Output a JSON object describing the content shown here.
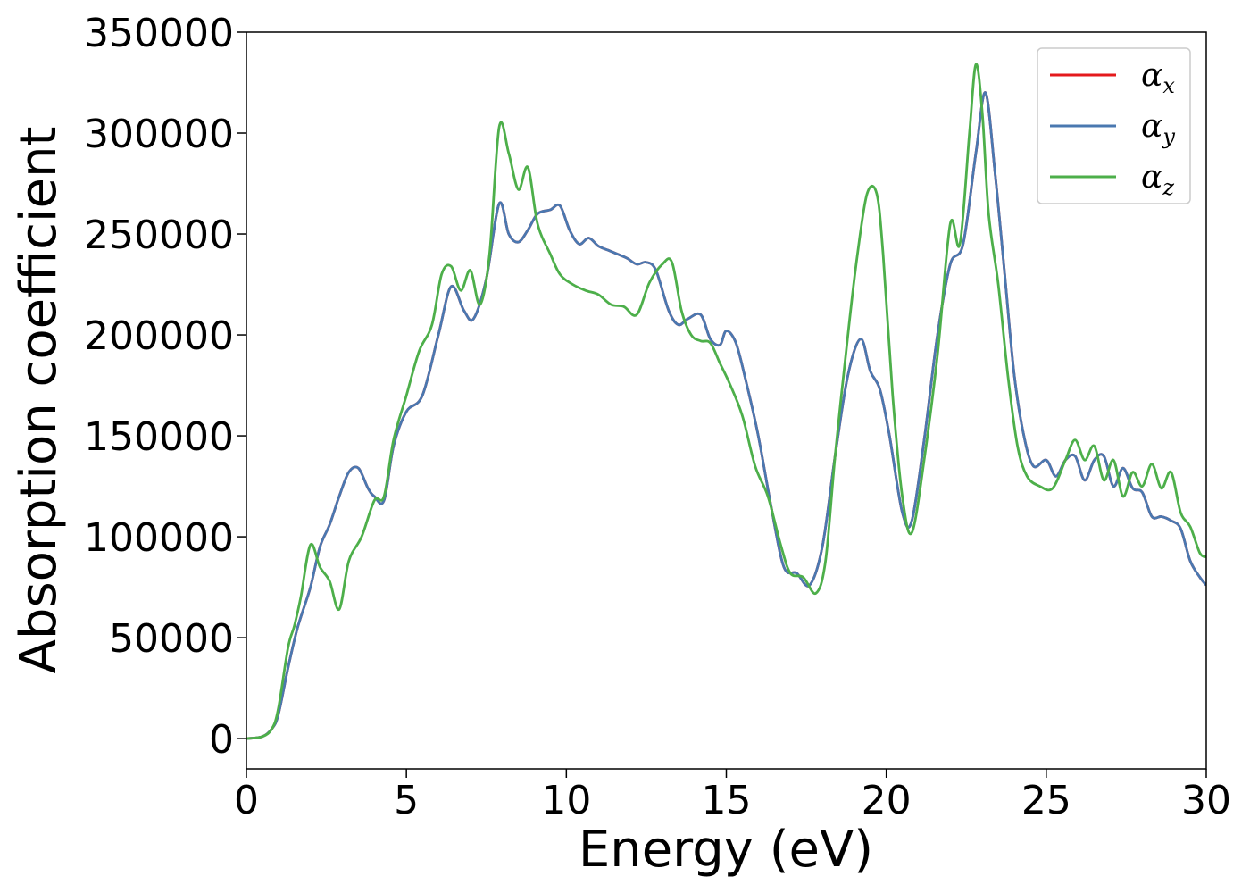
{
  "chart_data": {
    "type": "line",
    "title": "",
    "xlabel": "Energy (eV)",
    "ylabel": "Absorption coefficient",
    "xlim": [
      0,
      30
    ],
    "ylim": [
      -15000,
      350000
    ],
    "xticks": [
      "0",
      "5",
      "10",
      "15",
      "20",
      "25",
      "30"
    ],
    "yticks": [
      "0",
      "50000",
      "100000",
      "150000",
      "200000",
      "250000",
      "300000",
      "350000"
    ],
    "grid": false,
    "legend_position": "top-right",
    "legend": [
      {
        "symbol": "α",
        "sub": "x",
        "color": "#e41a1c"
      },
      {
        "symbol": "α",
        "sub": "y",
        "color": "#4a78b0"
      },
      {
        "symbol": "α",
        "sub": "z",
        "color": "#4daf4a"
      }
    ],
    "series": [
      {
        "color": "#e41a1c",
        "x": [
          0,
          0.5,
          0.8,
          1.0,
          1.3,
          1.6,
          2.0,
          2.3,
          2.6,
          2.9,
          3.2,
          3.5,
          3.8,
          4.0,
          4.3,
          4.6,
          5.0,
          5.5,
          6.0,
          6.4,
          6.8,
          7.1,
          7.5,
          7.9,
          8.2,
          8.5,
          8.8,
          9.1,
          9.5,
          9.8,
          10.1,
          10.4,
          10.7,
          11.0,
          11.3,
          11.6,
          11.9,
          12.2,
          12.5,
          12.8,
          13.2,
          13.5,
          13.8,
          14.2,
          14.5,
          14.8,
          15.0,
          15.3,
          15.6,
          16.0,
          16.4,
          16.8,
          17.2,
          17.6,
          18.0,
          18.4,
          18.8,
          19.2,
          19.5,
          19.8,
          20.1,
          20.5,
          20.8,
          21.2,
          21.6,
          22.0,
          22.4,
          22.8,
          23.1,
          23.4,
          23.7,
          24.0,
          24.3,
          24.6,
          25.0,
          25.3,
          25.6,
          25.9,
          26.2,
          26.5,
          26.8,
          27.1,
          27.4,
          27.7,
          28.0,
          28.3,
          28.6,
          28.9,
          29.2,
          29.5,
          29.8,
          30.0
        ],
        "y": [
          0,
          1000,
          5000,
          12000,
          35000,
          55000,
          75000,
          95000,
          106000,
          120000,
          132000,
          134000,
          124000,
          120000,
          118000,
          145000,
          162000,
          170000,
          200000,
          224000,
          212000,
          208000,
          228000,
          265000,
          250000,
          246000,
          252000,
          260000,
          262000,
          264000,
          252000,
          245000,
          248000,
          244000,
          242000,
          240000,
          238000,
          235000,
          236000,
          232000,
          212000,
          205000,
          208000,
          210000,
          198000,
          195000,
          202000,
          196000,
          178000,
          150000,
          115000,
          85000,
          82000,
          76000,
          95000,
          140000,
          180000,
          198000,
          182000,
          173000,
          150000,
          112000,
          108000,
          150000,
          200000,
          235000,
          245000,
          290000,
          320000,
          280000,
          230000,
          180000,
          150000,
          135000,
          138000,
          130000,
          138000,
          140000,
          128000,
          138000,
          140000,
          125000,
          134000,
          124000,
          122000,
          110000,
          110000,
          108000,
          104000,
          88000,
          80000,
          76000
        ]
      },
      {
        "color": "#4a78b0",
        "x": [
          0,
          0.5,
          0.8,
          1.0,
          1.3,
          1.6,
          2.0,
          2.3,
          2.6,
          2.9,
          3.2,
          3.5,
          3.8,
          4.0,
          4.3,
          4.6,
          5.0,
          5.5,
          6.0,
          6.4,
          6.8,
          7.1,
          7.5,
          7.9,
          8.2,
          8.5,
          8.8,
          9.1,
          9.5,
          9.8,
          10.1,
          10.4,
          10.7,
          11.0,
          11.3,
          11.6,
          11.9,
          12.2,
          12.5,
          12.8,
          13.2,
          13.5,
          13.8,
          14.2,
          14.5,
          14.8,
          15.0,
          15.3,
          15.6,
          16.0,
          16.4,
          16.8,
          17.2,
          17.6,
          18.0,
          18.4,
          18.8,
          19.2,
          19.5,
          19.8,
          20.1,
          20.5,
          20.8,
          21.2,
          21.6,
          22.0,
          22.4,
          22.8,
          23.1,
          23.4,
          23.7,
          24.0,
          24.3,
          24.6,
          25.0,
          25.3,
          25.6,
          25.9,
          26.2,
          26.5,
          26.8,
          27.1,
          27.4,
          27.7,
          28.0,
          28.3,
          28.6,
          28.9,
          29.2,
          29.5,
          29.8,
          30.0
        ],
        "y": [
          0,
          1000,
          5000,
          12000,
          35000,
          55000,
          75000,
          95000,
          106000,
          120000,
          132000,
          134000,
          124000,
          120000,
          118000,
          145000,
          162000,
          170000,
          200000,
          224000,
          212000,
          208000,
          228000,
          265000,
          250000,
          246000,
          252000,
          260000,
          262000,
          264000,
          252000,
          245000,
          248000,
          244000,
          242000,
          240000,
          238000,
          235000,
          236000,
          232000,
          212000,
          205000,
          208000,
          210000,
          198000,
          195000,
          202000,
          196000,
          178000,
          150000,
          115000,
          85000,
          82000,
          76000,
          95000,
          140000,
          180000,
          198000,
          182000,
          173000,
          150000,
          112000,
          108000,
          150000,
          200000,
          235000,
          245000,
          290000,
          320000,
          280000,
          230000,
          180000,
          150000,
          135000,
          138000,
          130000,
          138000,
          140000,
          128000,
          138000,
          140000,
          125000,
          134000,
          124000,
          122000,
          110000,
          110000,
          108000,
          104000,
          88000,
          80000,
          76000
        ]
      },
      {
        "color": "#4daf4a",
        "x": [
          0,
          0.5,
          0.8,
          1.0,
          1.3,
          1.5,
          1.7,
          2.0,
          2.3,
          2.6,
          2.9,
          3.2,
          3.6,
          4.0,
          4.3,
          4.6,
          5.0,
          5.4,
          5.8,
          6.1,
          6.4,
          6.7,
          7.0,
          7.3,
          7.6,
          7.9,
          8.2,
          8.5,
          8.8,
          9.1,
          9.5,
          9.8,
          10.2,
          10.6,
          11.0,
          11.4,
          11.8,
          12.2,
          12.6,
          13.0,
          13.3,
          13.6,
          13.9,
          14.2,
          14.5,
          14.8,
          15.1,
          15.5,
          15.9,
          16.3,
          16.7,
          17.0,
          17.4,
          17.8,
          18.1,
          18.4,
          18.8,
          19.1,
          19.4,
          19.7,
          19.9,
          20.2,
          20.5,
          20.8,
          21.2,
          21.6,
          22.0,
          22.3,
          22.6,
          22.8,
          23.0,
          23.2,
          23.5,
          23.8,
          24.1,
          24.4,
          24.8,
          25.2,
          25.6,
          25.9,
          26.2,
          26.5,
          26.8,
          27.1,
          27.4,
          27.7,
          28.0,
          28.3,
          28.6,
          28.9,
          29.2,
          29.5,
          29.8,
          30.0
        ],
        "y": [
          0,
          1000,
          5000,
          15000,
          45000,
          56000,
          70000,
          96000,
          85000,
          78000,
          64000,
          88000,
          100000,
          118000,
          120000,
          148000,
          170000,
          192000,
          205000,
          230000,
          234000,
          222000,
          232000,
          215000,
          240000,
          303000,
          290000,
          272000,
          283000,
          255000,
          240000,
          230000,
          225000,
          222000,
          220000,
          215000,
          214000,
          210000,
          226000,
          235000,
          236000,
          212000,
          200000,
          197000,
          196000,
          186000,
          176000,
          160000,
          135000,
          120000,
          96000,
          82000,
          80000,
          72000,
          88000,
          140000,
          200000,
          240000,
          270000,
          270000,
          240000,
          170000,
          120000,
          102000,
          140000,
          190000,
          255000,
          245000,
          300000,
          334000,
          310000,
          260000,
          225000,
          180000,
          145000,
          130000,
          125000,
          124000,
          138000,
          148000,
          138000,
          145000,
          128000,
          138000,
          120000,
          132000,
          125000,
          136000,
          124000,
          132000,
          112000,
          105000,
          92000,
          90000
        ]
      }
    ]
  }
}
